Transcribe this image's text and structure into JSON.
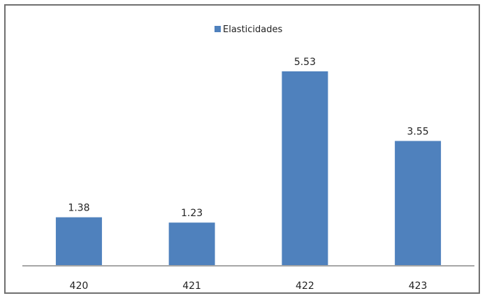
{
  "chart_data": {
    "type": "bar",
    "categories": [
      "420",
      "421",
      "422",
      "423"
    ],
    "series": [
      {
        "name": "Elasticidades",
        "values": [
          1.38,
          1.23,
          5.53,
          3.55
        ]
      }
    ],
    "data_labels": [
      "1.38",
      "1.23",
      "5.53",
      "3.55"
    ],
    "ylim": [
      0,
      6
    ],
    "grid": false,
    "legend": "top-center",
    "colors": {
      "bar": "#4f81bd",
      "axis": "#a6a6a6",
      "frame": "#6f6f6f"
    }
  }
}
